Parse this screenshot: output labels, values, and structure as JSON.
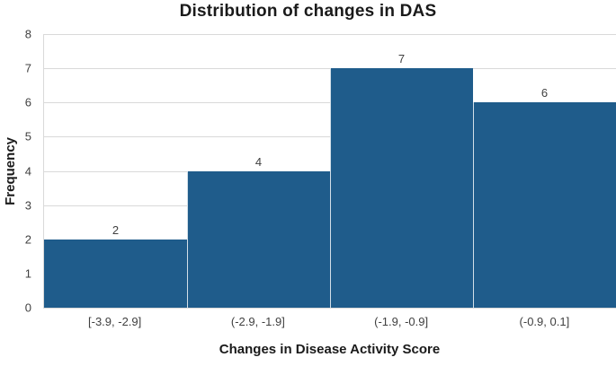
{
  "chart_data": {
    "type": "bar",
    "subtype": "histogram",
    "title": "Distribution of changes in DAS",
    "xlabel": "Changes in Disease Activity Score",
    "ylabel": "Frequency",
    "categories": [
      "[-3.9, -2.9]",
      "(-2.9, -1.9]",
      "(-1.9, -0.9]",
      "(-0.9, 0.1]"
    ],
    "values": [
      2,
      4,
      7,
      6
    ],
    "data_labels": [
      2,
      4,
      7,
      6
    ],
    "ylim": [
      0,
      8
    ],
    "ytick_step": 1,
    "yticks": [
      0,
      1,
      2,
      3,
      4,
      5,
      6,
      7,
      8
    ],
    "grid": true,
    "legend": "none",
    "colors": {
      "bar": "#1f5c8b",
      "bar_separator": "#d2dfe8",
      "gridline": "#d9d9d9",
      "tick_text": "#404040",
      "title_text": "#1a1a1a",
      "background": "#ffffff"
    }
  }
}
